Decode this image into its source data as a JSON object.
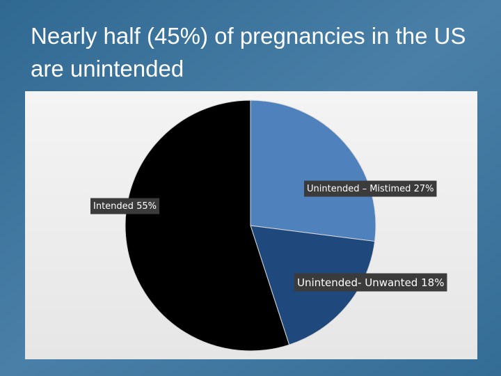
{
  "chart_data": {
    "type": "pie",
    "title": "Nearly half (45%) of pregnancies in the US are unintended",
    "categories": [
      "Unintended – Mistimed",
      "Unintended- Unwanted",
      "Intended"
    ],
    "values": [
      27,
      18,
      55
    ],
    "value_labels": [
      "27%",
      "18%",
      "55%"
    ],
    "colors": [
      "#4f81bd",
      "#1f497d",
      "#000000"
    ]
  }
}
